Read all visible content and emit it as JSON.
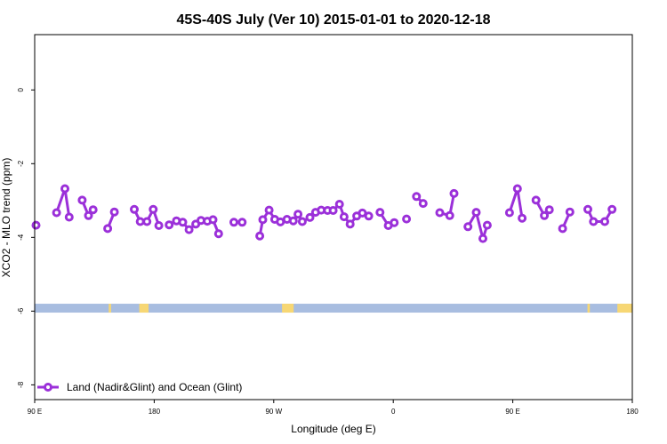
{
  "chart_data": {
    "type": "line",
    "title": "45S-40S July (Ver 10)   2015-01-01 to 2020-12-18",
    "xlabel": "Longitude (deg E)",
    "ylabel": "XCO2 - MLO trend (ppm)",
    "xlim": [
      90,
      270
    ],
    "ylim": [
      -8.4,
      1.5
    ],
    "x_ticks": [
      {
        "value": 90,
        "label": "90 E"
      },
      {
        "value": 126,
        "label": "180"
      },
      {
        "value": 162,
        "label": "90 W"
      },
      {
        "value": 198,
        "label": "0"
      },
      {
        "value": 234,
        "label": "90 E"
      },
      {
        "value": 270,
        "label": "180"
      }
    ],
    "y_ticks": [
      {
        "value": 0,
        "label": "0"
      },
      {
        "value": -2,
        "label": "-2"
      },
      {
        "value": -4,
        "label": "-4"
      },
      {
        "value": -6,
        "label": "-6"
      },
      {
        "value": -8,
        "label": "-8"
      }
    ],
    "legend": {
      "position": "bottom-left",
      "label": "Land (Nadir&Glint) and Ocean (Glint)"
    },
    "colors": {
      "series": "#9b30d9",
      "ocean": "#a8bde0",
      "land": "#f7d774",
      "axis": "#000000"
    },
    "series": [
      {
        "name": "Land (Nadir&Glint) and Ocean (Glint)",
        "segments": [
          [
            [
              90.4,
              -3.67
            ]
          ],
          [
            [
              96.6,
              -3.33
            ],
            [
              99.1,
              -2.68
            ],
            [
              100.4,
              -3.45
            ]
          ],
          [
            [
              104.3,
              -2.99
            ],
            [
              106.2,
              -3.41
            ],
            [
              107.6,
              -3.25
            ]
          ],
          [
            [
              112.0,
              -3.76
            ],
            [
              114.0,
              -3.31
            ]
          ],
          [
            [
              120.0,
              -3.24
            ],
            [
              121.8,
              -3.57
            ],
            [
              123.8,
              -3.57
            ],
            [
              125.7,
              -3.24
            ],
            [
              127.4,
              -3.68
            ]
          ],
          [
            [
              130.5,
              -3.66
            ],
            [
              132.7,
              -3.55
            ],
            [
              134.6,
              -3.59
            ],
            [
              136.5,
              -3.79
            ],
            [
              138.5,
              -3.64
            ],
            [
              140.1,
              -3.54
            ],
            [
              142.0,
              -3.56
            ],
            [
              143.7,
              -3.52
            ],
            [
              145.4,
              -3.9
            ]
          ],
          [
            [
              150.0,
              -3.59
            ],
            [
              152.5,
              -3.59
            ]
          ],
          [
            [
              157.8,
              -3.96
            ],
            [
              158.7,
              -3.52
            ],
            [
              160.6,
              -3.26
            ],
            [
              162.3,
              -3.51
            ],
            [
              164.0,
              -3.58
            ],
            [
              166.0,
              -3.51
            ],
            [
              167.9,
              -3.55
            ],
            [
              169.3,
              -3.37
            ],
            [
              170.6,
              -3.57
            ],
            [
              172.9,
              -3.46
            ],
            [
              174.6,
              -3.32
            ],
            [
              176.3,
              -3.26
            ],
            [
              178.2,
              -3.27
            ],
            [
              179.9,
              -3.27
            ],
            [
              181.8,
              -3.1
            ],
            [
              183.2,
              -3.44
            ],
            [
              185.0,
              -3.64
            ],
            [
              187.0,
              -3.42
            ],
            [
              188.7,
              -3.34
            ],
            [
              190.6,
              -3.42
            ]
          ],
          [
            [
              194.0,
              -3.32
            ],
            [
              196.5,
              -3.68
            ],
            [
              198.3,
              -3.6
            ]
          ],
          [
            [
              202.0,
              -3.5
            ]
          ],
          [
            [
              205.0,
              -2.89
            ],
            [
              207.0,
              -3.08
            ]
          ],
          [
            [
              212.0,
              -3.33
            ],
            [
              215.0,
              -3.41
            ],
            [
              216.3,
              -2.81
            ]
          ],
          [
            [
              220.5,
              -3.71
            ],
            [
              223.0,
              -3.32
            ],
            [
              225.0,
              -4.03
            ],
            [
              226.3,
              -3.67
            ]
          ],
          [
            [
              233.0,
              -3.33
            ],
            [
              235.4,
              -2.68
            ],
            [
              236.8,
              -3.48
            ]
          ],
          [
            [
              241.0,
              -2.99
            ],
            [
              243.5,
              -3.41
            ],
            [
              245.0,
              -3.25
            ]
          ],
          [
            [
              249.0,
              -3.76
            ],
            [
              251.2,
              -3.31
            ]
          ],
          [
            [
              256.6,
              -3.24
            ],
            [
              258.3,
              -3.57
            ],
            [
              261.7,
              -3.57
            ],
            [
              263.9,
              -3.24
            ]
          ]
        ]
      }
    ],
    "surface_band": {
      "y_center": -5.92,
      "land_ranges": [
        [
          112.3,
          113.0
        ],
        [
          121.5,
          124.3
        ],
        [
          164.5,
          168.0
        ],
        [
          256.5,
          257.2
        ],
        [
          265.5,
          270
        ]
      ]
    }
  }
}
